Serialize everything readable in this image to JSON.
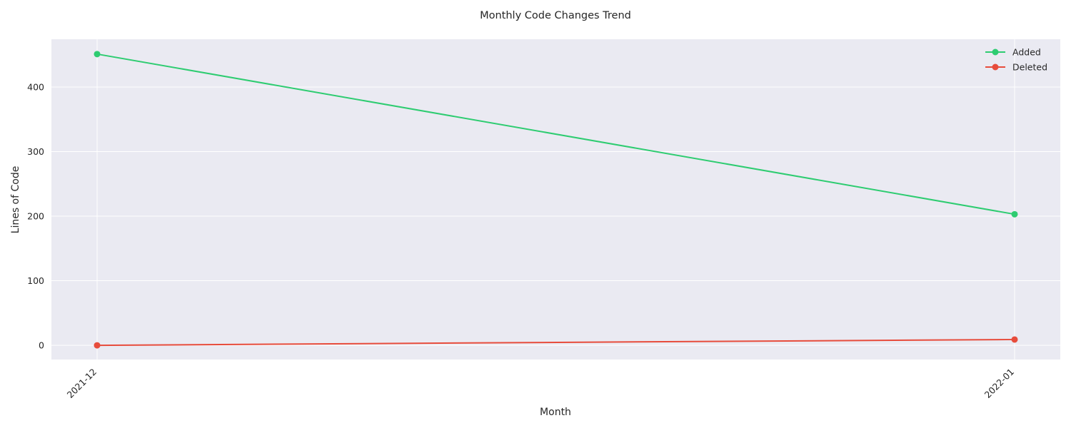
{
  "chart_data": {
    "type": "line",
    "title": "Monthly Code Changes Trend",
    "xlabel": "Month",
    "ylabel": "Lines of Code",
    "categories": [
      "2021-12",
      "2022-01"
    ],
    "ylim": [
      -22,
      474
    ],
    "yticks": [
      0,
      100,
      200,
      300,
      400
    ],
    "grid": true,
    "legend_position": "top-right",
    "background_color": "#eaeaf2",
    "series": [
      {
        "name": "Added",
        "values": [
          451,
          203
        ],
        "color": "#2ecc71"
      },
      {
        "name": "Deleted",
        "values": [
          0,
          9
        ],
        "color": "#e74c3c"
      }
    ]
  }
}
